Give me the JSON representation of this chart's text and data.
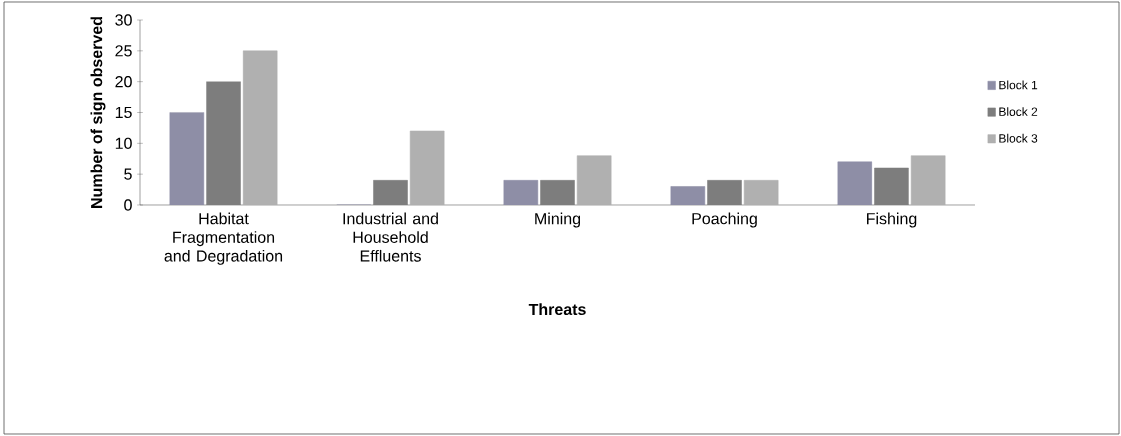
{
  "chart_data": {
    "type": "bar",
    "xlabel": "Threats",
    "ylabel": "Number of sign observed",
    "categories": [
      "Habitat Fragmentation and Degradation",
      "Industrial and Household Effluents",
      "Mining",
      "Poaching",
      "Fishing"
    ],
    "series": [
      {
        "name": "Block 1",
        "color": "#8e8ea6",
        "values": [
          15,
          0,
          4,
          3,
          7
        ]
      },
      {
        "name": "Block 2",
        "color": "#7d7d7d",
        "values": [
          20,
          4,
          4,
          4,
          6
        ]
      },
      {
        "name": "Block 3",
        "color": "#b0b0b0",
        "values": [
          25,
          12,
          8,
          4,
          8
        ]
      }
    ],
    "ylim": [
      0,
      30
    ],
    "yticks": [
      0,
      5,
      10,
      15,
      20,
      25,
      30
    ],
    "grid": false,
    "legend": "right"
  }
}
